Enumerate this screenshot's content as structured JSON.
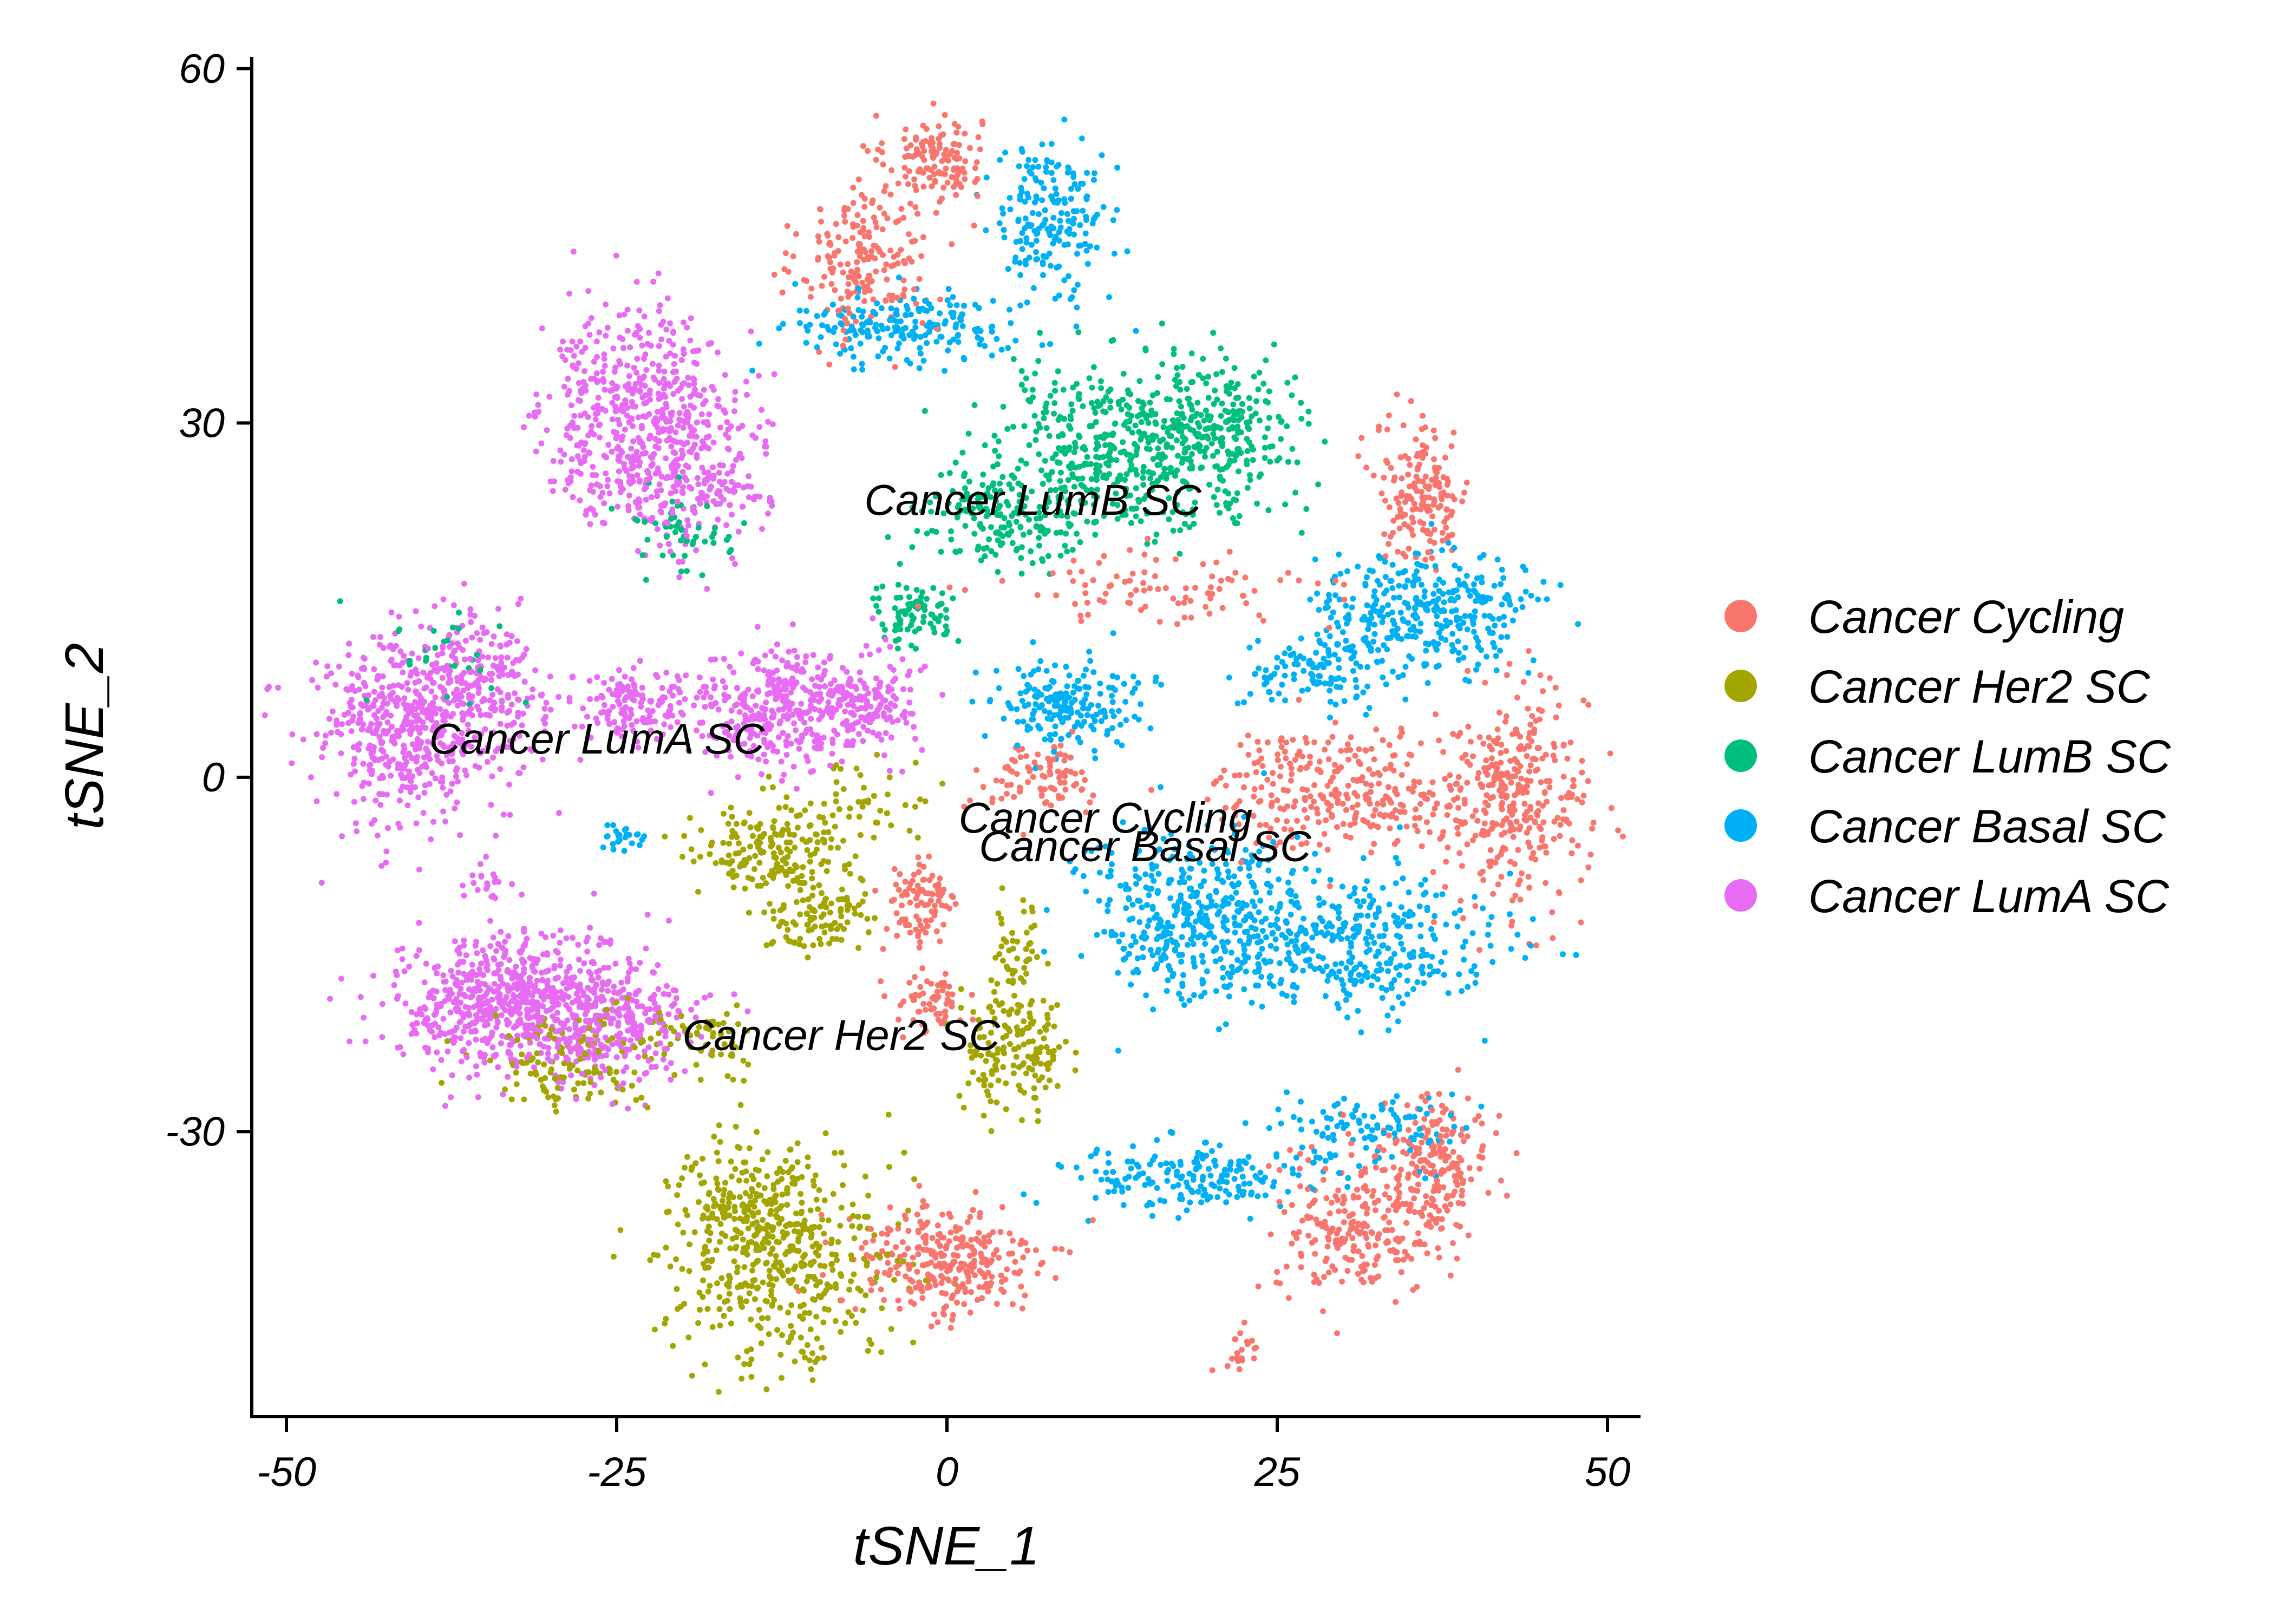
{
  "chart_data": {
    "type": "scatter",
    "title": "",
    "xlabel": "tSNE_1",
    "ylabel": "tSNE_2",
    "xlim": [
      -52.5,
      52.5
    ],
    "ylim": [
      -54,
      61
    ],
    "xticks": [
      -50,
      -25,
      0,
      25,
      50
    ],
    "yticks": [
      -30,
      0,
      30,
      60
    ],
    "xtick_labels": [
      "-50",
      "-25",
      "0",
      "25",
      "50"
    ],
    "ytick_labels": [
      "-30",
      "0",
      "30",
      "60"
    ],
    "grid": false,
    "legend_position": "right",
    "series": [
      {
        "name": "Cancer Cycling",
        "color": "#F8766D",
        "clusters": [
          {
            "x": -1,
            "y": 52.5,
            "sx": 1.8,
            "sy": 1.8,
            "n": 130
          },
          {
            "x": -6,
            "y": 44,
            "sx": 2.5,
            "sy": 3.5,
            "n": 200
          },
          {
            "x": 36,
            "y": 24,
            "sx": 1.8,
            "sy": 3,
            "n": 170
          },
          {
            "x": 30,
            "y": -1,
            "sx": 5,
            "sy": 2.5,
            "n": 300
          },
          {
            "x": 43,
            "y": -2,
            "sx": 2.8,
            "sy": 4.5,
            "n": 330
          },
          {
            "x": 31,
            "y": -38,
            "sx": 3,
            "sy": 3,
            "n": 230
          },
          {
            "x": 37,
            "y": -33,
            "sx": 2,
            "sy": 3,
            "n": 200
          },
          {
            "x": 0,
            "y": -41,
            "sx": 3.5,
            "sy": 2.5,
            "n": 290
          },
          {
            "x": -2,
            "y": -11,
            "sx": 1.5,
            "sy": 2,
            "n": 90
          },
          {
            "x": -1.5,
            "y": -19,
            "sx": 1.3,
            "sy": 1.3,
            "n": 60
          },
          {
            "x": 7,
            "y": 0,
            "sx": 2.5,
            "sy": 1.5,
            "n": 90
          },
          {
            "x": 16,
            "y": 16,
            "sx": 6,
            "sy": 1.5,
            "n": 90
          },
          {
            "x": 22,
            "y": -49,
            "sx": 1,
            "sy": 1,
            "n": 20
          }
        ]
      },
      {
        "name": "Cancer Her2 SC",
        "color": "#A3A500",
        "clusters": [
          {
            "x": -12,
            "y": -41,
            "sx": 4,
            "sy": 4.5,
            "n": 420
          },
          {
            "x": -16,
            "y": -36,
            "sx": 2.5,
            "sy": 3,
            "n": 150
          },
          {
            "x": -13,
            "y": -6,
            "sx": 3,
            "sy": 2,
            "n": 190
          },
          {
            "x": -10,
            "y": -12,
            "sx": 1.8,
            "sy": 1.5,
            "n": 100
          },
          {
            "x": 5,
            "y": -23,
            "sx": 2,
            "sy": 2.5,
            "n": 160
          },
          {
            "x": 5.5,
            "y": -15,
            "sx": 1,
            "sy": 2.5,
            "n": 50
          },
          {
            "x": -28,
            "y": -24,
            "sx": 3.5,
            "sy": 2,
            "n": 140
          },
          {
            "x": -18,
            "y": -22,
            "sx": 2,
            "sy": 1.5,
            "n": 60
          },
          {
            "x": -6,
            "y": -2,
            "sx": 3,
            "sy": 1.5,
            "n": 40
          }
        ]
      },
      {
        "name": "Cancer LumB SC",
        "color": "#00BF7D",
        "clusters": [
          {
            "x": 14,
            "y": 28,
            "sx": 5.5,
            "sy": 3.5,
            "n": 520
          },
          {
            "x": 21,
            "y": 30,
            "sx": 2.5,
            "sy": 2.5,
            "n": 150
          },
          {
            "x": 4,
            "y": 22,
            "sx": 3,
            "sy": 2,
            "n": 170
          },
          {
            "x": -2.5,
            "y": 14,
            "sx": 1.6,
            "sy": 1.3,
            "n": 80
          },
          {
            "x": -20,
            "y": 21,
            "sx": 2,
            "sy": 1.8,
            "n": 50
          },
          {
            "x": -37,
            "y": 10,
            "sx": 3,
            "sy": 2,
            "n": 30
          }
        ]
      },
      {
        "name": "Cancer Basal SC",
        "color": "#00B0F6",
        "clusters": [
          {
            "x": 8,
            "y": 47,
            "sx": 2,
            "sy": 3.5,
            "n": 190
          },
          {
            "x": -3,
            "y": 38,
            "sx": 4.5,
            "sy": 1.5,
            "n": 200
          },
          {
            "x": 36,
            "y": 14,
            "sx": 4,
            "sy": 2.5,
            "n": 340
          },
          {
            "x": 28,
            "y": 9,
            "sx": 3,
            "sy": 1.5,
            "n": 110
          },
          {
            "x": 9,
            "y": 6,
            "sx": 2.8,
            "sy": 2,
            "n": 190
          },
          {
            "x": 18,
            "y": -12,
            "sx": 4,
            "sy": 3.5,
            "n": 360
          },
          {
            "x": 30,
            "y": -14,
            "sx": 6,
            "sy": 3,
            "n": 400
          },
          {
            "x": 18,
            "y": -34,
            "sx": 5,
            "sy": 1.3,
            "n": 180
          },
          {
            "x": 32,
            "y": -30,
            "sx": 4,
            "sy": 1.5,
            "n": 110
          },
          {
            "x": -24.5,
            "y": -5,
            "sx": 0.8,
            "sy": 0.6,
            "n": 25
          }
        ]
      },
      {
        "name": "Cancer LumA SC",
        "color": "#E76BF3",
        "clusters": [
          {
            "x": -24,
            "y": 31,
            "sx": 3.5,
            "sy": 4.5,
            "n": 470
          },
          {
            "x": -19,
            "y": 26,
            "sx": 3,
            "sy": 3.5,
            "n": 230
          },
          {
            "x": -41,
            "y": 4,
            "sx": 3.5,
            "sy": 4,
            "n": 500
          },
          {
            "x": -35,
            "y": 8,
            "sx": 2.5,
            "sy": 3,
            "n": 200
          },
          {
            "x": -13,
            "y": 6,
            "sx": 3.5,
            "sy": 2.5,
            "n": 360
          },
          {
            "x": -24,
            "y": 6,
            "sx": 2.5,
            "sy": 1.5,
            "n": 140
          },
          {
            "x": -6,
            "y": 6,
            "sx": 2,
            "sy": 2,
            "n": 130
          },
          {
            "x": -33,
            "y": -19,
            "sx": 4.5,
            "sy": 3,
            "n": 700
          },
          {
            "x": -25,
            "y": -21,
            "sx": 3,
            "sy": 2.5,
            "n": 220
          },
          {
            "x": -35,
            "y": -9,
            "sx": 0.8,
            "sy": 0.8,
            "n": 20
          }
        ]
      }
    ],
    "annotations": [
      {
        "text": "Cancer LumB SC",
        "x": 6.5,
        "y": 23.5
      },
      {
        "text": "Cancer LumA SC",
        "x": -26.5,
        "y": 3.3
      },
      {
        "text": "Cancer Cycling",
        "x": 12,
        "y": -3.4
      },
      {
        "text": "Cancer Basal SC",
        "x": 15,
        "y": -5.8
      },
      {
        "text": "Cancer Her2 SC",
        "x": -8,
        "y": -21.8
      }
    ]
  }
}
